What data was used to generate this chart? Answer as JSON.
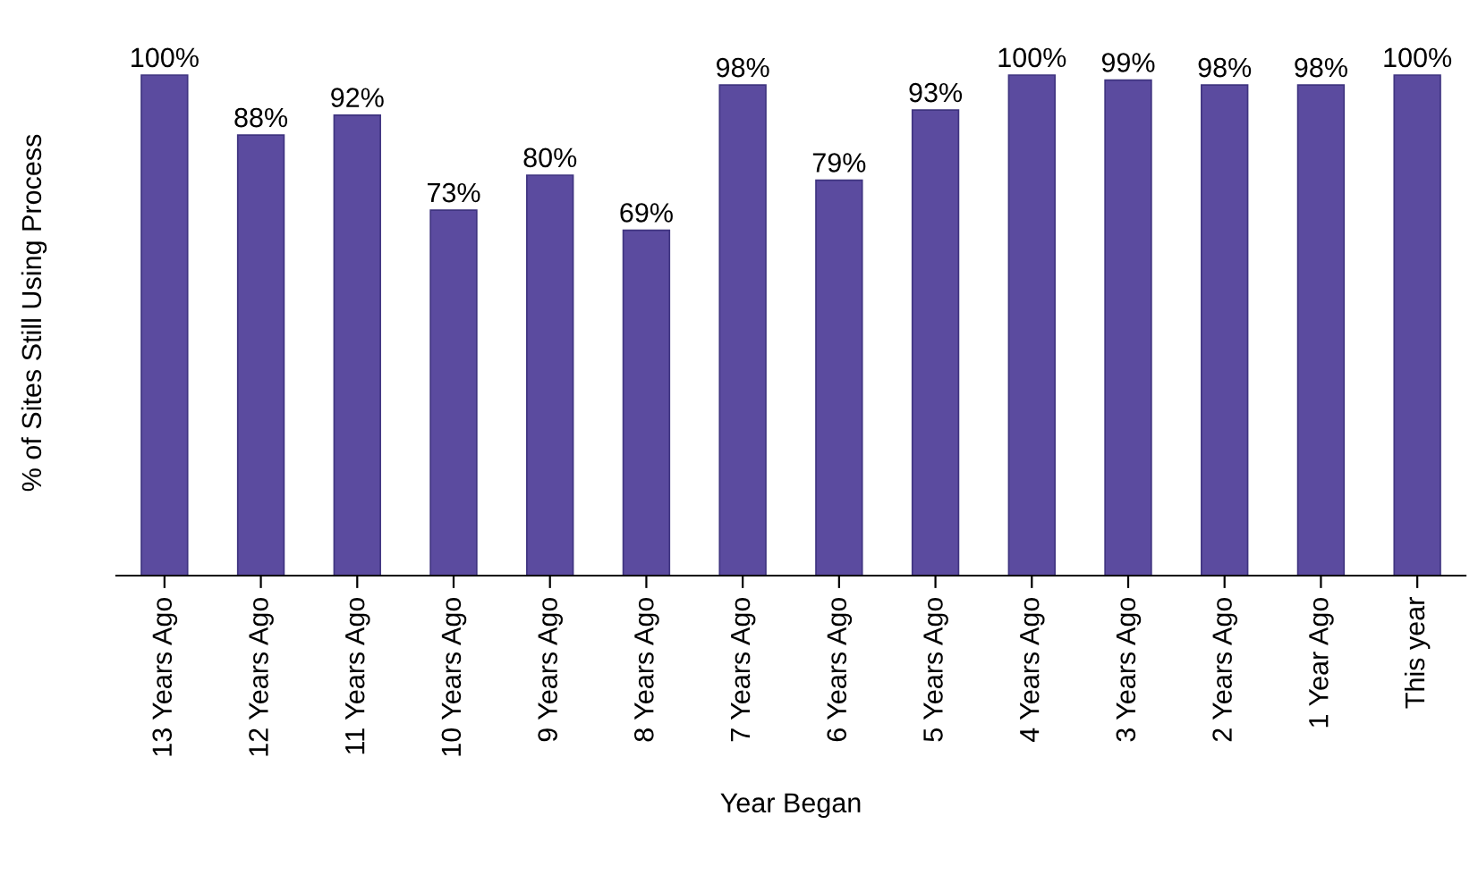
{
  "chart_data": {
    "type": "bar",
    "ylabel": "% of Sites Still Using Process",
    "xlabel": "Year Began",
    "categories": [
      "13 Years Ago",
      "12 Years Ago",
      "11 Years Ago",
      "10 Years Ago",
      "9 Years Ago",
      "8 Years Ago",
      "7 Years Ago",
      "6 Years Ago",
      "5 Years Ago",
      "4 Years Ago",
      "3 Years Ago",
      "2 Years Ago",
      "1 Year Ago",
      "This year"
    ],
    "values": [
      100,
      88,
      92,
      73,
      80,
      69,
      98,
      79,
      93,
      100,
      99,
      98,
      98,
      100
    ],
    "value_labels": [
      "100%",
      "88%",
      "92%",
      "73%",
      "80%",
      "69%",
      "98%",
      "79%",
      "93%",
      "100%",
      "99%",
      "98%",
      "98%",
      "100%"
    ],
    "color": "#5b4b9f",
    "grid": false,
    "legend": false
  }
}
